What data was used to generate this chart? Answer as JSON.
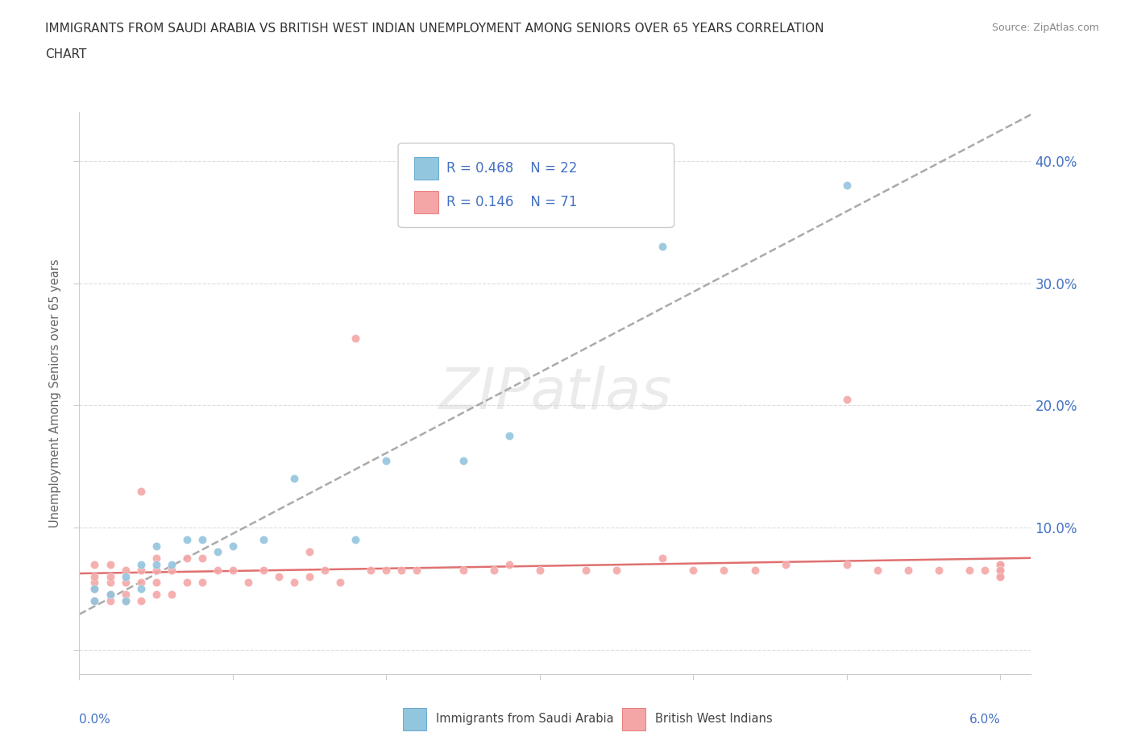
{
  "title_line1": "IMMIGRANTS FROM SAUDI ARABIA VS BRITISH WEST INDIAN UNEMPLOYMENT AMONG SENIORS OVER 65 YEARS CORRELATION",
  "title_line2": "CHART",
  "source": "Source: ZipAtlas.com",
  "ylabel": "Unemployment Among Seniors over 65 years",
  "color_saudi": "#92c5de",
  "color_saudi_dark": "#4393c3",
  "color_bwi": "#f4a6a6",
  "color_bwi_dark": "#e05c5c",
  "color_trendline_saudi": "#aaaaaa",
  "color_trendline_bwi": "#e07070",
  "color_axis_labels": "#4472c4",
  "color_ylabel": "#666666",
  "color_grid": "#dddddd",
  "xmin": 0.0,
  "xmax": 0.062,
  "ymin": -0.02,
  "ymax": 0.44,
  "yticks": [
    0.0,
    0.1,
    0.2,
    0.3,
    0.4
  ],
  "ytick_labels": [
    "",
    "10.0%",
    "20.0%",
    "30.0%",
    "40.0%"
  ],
  "saudi_x": [
    0.001,
    0.001,
    0.002,
    0.003,
    0.003,
    0.004,
    0.004,
    0.005,
    0.005,
    0.006,
    0.007,
    0.008,
    0.009,
    0.01,
    0.012,
    0.014,
    0.018,
    0.02,
    0.025,
    0.028,
    0.038,
    0.05
  ],
  "saudi_y": [
    0.04,
    0.05,
    0.045,
    0.04,
    0.06,
    0.07,
    0.05,
    0.085,
    0.07,
    0.07,
    0.09,
    0.09,
    0.08,
    0.085,
    0.09,
    0.14,
    0.09,
    0.155,
    0.155,
    0.175,
    0.33,
    0.38
  ],
  "bwi_x": [
    0.001,
    0.001,
    0.001,
    0.001,
    0.001,
    0.002,
    0.002,
    0.002,
    0.002,
    0.002,
    0.003,
    0.003,
    0.003,
    0.003,
    0.004,
    0.004,
    0.004,
    0.004,
    0.005,
    0.005,
    0.005,
    0.005,
    0.006,
    0.006,
    0.007,
    0.007,
    0.008,
    0.008,
    0.009,
    0.01,
    0.011,
    0.012,
    0.013,
    0.014,
    0.015,
    0.015,
    0.016,
    0.017,
    0.018,
    0.019,
    0.02,
    0.021,
    0.022,
    0.025,
    0.027,
    0.028,
    0.03,
    0.033,
    0.035,
    0.038,
    0.04,
    0.042,
    0.044,
    0.046,
    0.05,
    0.05,
    0.052,
    0.054,
    0.056,
    0.058,
    0.059,
    0.06,
    0.06,
    0.06,
    0.06,
    0.06,
    0.06,
    0.06,
    0.06,
    0.06,
    0.06
  ],
  "bwi_y": [
    0.04,
    0.05,
    0.055,
    0.06,
    0.07,
    0.04,
    0.045,
    0.055,
    0.06,
    0.07,
    0.04,
    0.045,
    0.055,
    0.065,
    0.04,
    0.055,
    0.065,
    0.13,
    0.045,
    0.055,
    0.065,
    0.075,
    0.045,
    0.065,
    0.055,
    0.075,
    0.055,
    0.075,
    0.065,
    0.065,
    0.055,
    0.065,
    0.06,
    0.055,
    0.06,
    0.08,
    0.065,
    0.055,
    0.255,
    0.065,
    0.065,
    0.065,
    0.065,
    0.065,
    0.065,
    0.07,
    0.065,
    0.065,
    0.065,
    0.075,
    0.065,
    0.065,
    0.065,
    0.07,
    0.07,
    0.205,
    0.065,
    0.065,
    0.065,
    0.065,
    0.065,
    0.065,
    0.07,
    0.065,
    0.065,
    0.06,
    0.07,
    0.065,
    0.07,
    0.065,
    0.06
  ]
}
